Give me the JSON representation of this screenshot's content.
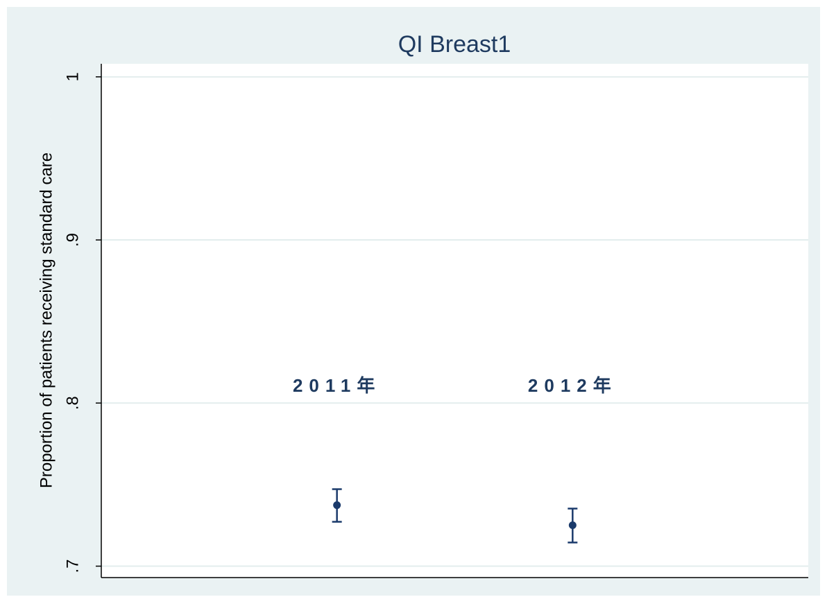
{
  "chart_data": {
    "type": "errorbar",
    "title": "QI Breast1",
    "y_label": "Proportion of patients receiving standard care",
    "categories": [
      "2011年",
      "2012年"
    ],
    "series": [
      {
        "color": "#1a3a6b",
        "values": [
          0.7374,
          0.7251
        ],
        "ci_low": [
          0.7272,
          0.7145
        ],
        "ci_high": [
          0.7472,
          0.7353
        ]
      }
    ],
    "ylim": [
      0.693,
      1.008
    ],
    "yticks": [
      {
        "value": 0.7,
        "label": ".7"
      },
      {
        "value": 0.8,
        "label": ".8"
      },
      {
        "value": 0.9,
        "label": ".9"
      },
      {
        "value": 1,
        "label": "1"
      }
    ],
    "grid": true
  }
}
